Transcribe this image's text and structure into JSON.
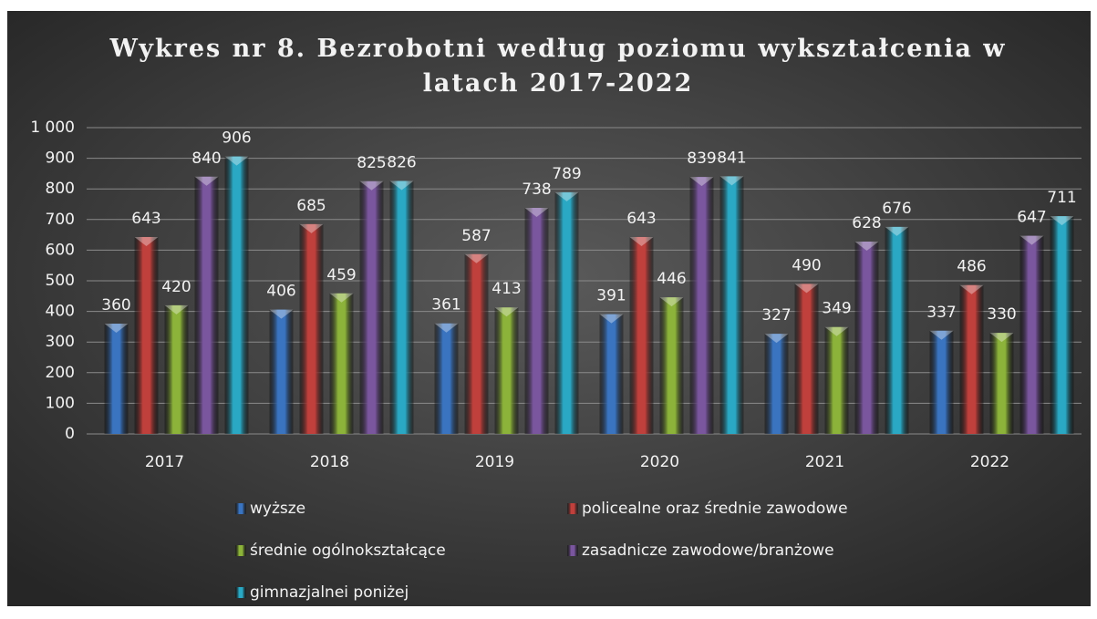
{
  "chart_data": {
    "type": "bar",
    "title": "Wykres nr 8. Bezrobotni według poziomu wykształcenia w latach 2017-2022",
    "categories": [
      "2017",
      "2018",
      "2019",
      "2020",
      "2021",
      "2022"
    ],
    "series": [
      {
        "name": "wyższe",
        "color": "#3a74c0",
        "values": [
          360,
          406,
          361,
          391,
          327,
          337
        ]
      },
      {
        "name": "policealne oraz średnie zawodowe",
        "color": "#c0403c",
        "values": [
          643,
          685,
          587,
          643,
          490,
          486
        ]
      },
      {
        "name": "średnie ogólnokształcące",
        "color": "#8cb33a",
        "values": [
          420,
          459,
          413,
          446,
          349,
          330
        ]
      },
      {
        "name": "zasadnicze zawodowe/branżowe",
        "color": "#7a569e",
        "values": [
          840,
          825,
          738,
          839,
          628,
          647
        ]
      },
      {
        "name": "gimnazjalnei poniżej",
        "color": "#2aa8c4",
        "values": [
          906,
          826,
          789,
          841,
          676,
          711
        ]
      }
    ],
    "ylim": [
      0,
      1000
    ],
    "yticks": [
      0,
      100,
      200,
      300,
      400,
      500,
      600,
      700,
      800,
      900,
      {
        "value": 1000,
        "label": "1 000"
      }
    ],
    "grid": true
  }
}
